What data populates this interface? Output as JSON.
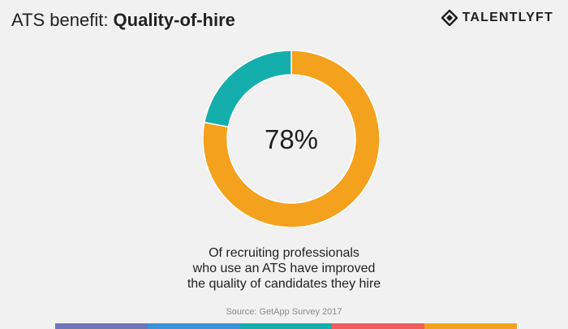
{
  "header": {
    "title_prefix": "ATS benefit: ",
    "title_strong": "Quality-of-hire",
    "brand_name": "TalentLyft",
    "brand_display": "TALENTLYFT",
    "brand_icon": "diamond-logo-icon"
  },
  "chart_data": {
    "type": "pie",
    "variant": "donut",
    "slices": [
      {
        "label": "",
        "value": 78,
        "color": "#f4a11d"
      },
      {
        "label": "",
        "value": 22,
        "color": "#14aeac"
      }
    ],
    "center_text": "78%",
    "title": "",
    "legend": "none"
  },
  "caption": {
    "line1": "Of recruiting professionals",
    "line2": "who use an ATS have improved",
    "line3": "the quality of candidates they hire"
  },
  "source": "Source: GetApp Survey 2017",
  "bottom_bar": {
    "colors": [
      "#6f76b8",
      "#3a93dd",
      "#13aead",
      "#ef5c5b",
      "#f4a11d"
    ]
  },
  "colors": {
    "background": "#f1f1f1",
    "primary": "#f4a11d",
    "secondary": "#14aeac",
    "text": "#222222",
    "source_text": "#8a8a8a"
  }
}
